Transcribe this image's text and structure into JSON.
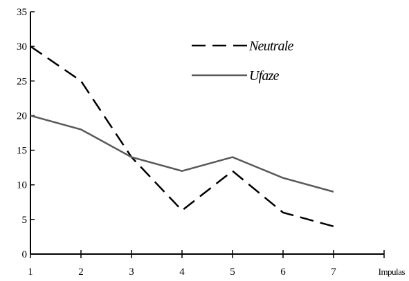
{
  "chart_data": {
    "type": "line",
    "x": [
      1,
      2,
      3,
      4,
      5,
      6,
      7
    ],
    "xlabel": "Impulas",
    "ylabel": "",
    "title": "",
    "xlim": [
      1,
      8
    ],
    "ylim": [
      0,
      35
    ],
    "yticks": [
      0,
      5,
      10,
      15,
      20,
      25,
      30,
      35
    ],
    "xticks": [
      1,
      2,
      3,
      4,
      5,
      6,
      7
    ],
    "grid": false,
    "legend_position": "top-right",
    "series": [
      {
        "name": "Neutrale",
        "values": [
          30,
          25,
          14,
          6.3,
          12,
          6,
          4
        ],
        "color": "#000000",
        "dash": "dashed"
      },
      {
        "name": "Ufaze",
        "values": [
          20,
          18,
          14,
          12,
          14,
          11,
          9
        ],
        "color": "#595959",
        "dash": "solid"
      }
    ]
  }
}
